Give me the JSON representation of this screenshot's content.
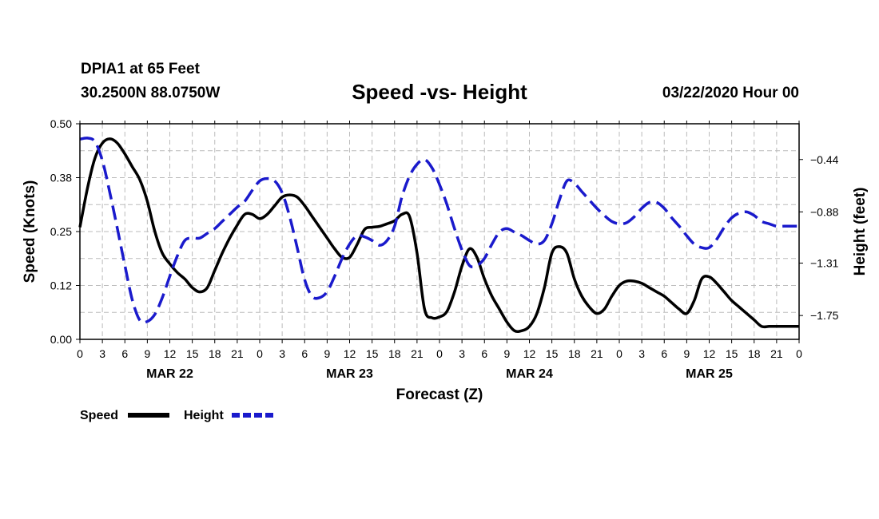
{
  "header": {
    "station": "DPIA1 at 65 Feet",
    "latlon": "30.2500N 88.0750W",
    "title": "Speed -vs- Height",
    "datetime": "03/22/2020 Hour 00"
  },
  "colors": {
    "speed": "#000000",
    "height": "#1a1acc",
    "grid": "#bbbbbb"
  },
  "chart_data": {
    "type": "line",
    "title": "Speed -vs- Height",
    "xlabel": "Forecast (Z)",
    "ylabel": "Speed (Knots)",
    "y2label": "Height (feet)",
    "xlim": [
      0,
      96
    ],
    "ylim": [
      0,
      0.5
    ],
    "y2lim": [
      -1.95,
      -0.14
    ],
    "x_ticks": [
      0,
      3,
      6,
      9,
      12,
      15,
      18,
      21,
      24,
      27,
      30,
      33,
      36,
      39,
      42,
      45,
      48,
      51,
      54,
      57,
      60,
      63,
      66,
      69,
      72,
      75,
      78,
      81,
      84,
      87,
      90,
      93,
      96
    ],
    "x_tick_labels": [
      "0",
      "3",
      "6",
      "9",
      "12",
      "15",
      "18",
      "21",
      "0",
      "3",
      "6",
      "9",
      "12",
      "15",
      "18",
      "21",
      "0",
      "3",
      "6",
      "9",
      "12",
      "15",
      "18",
      "21",
      "0",
      "3",
      "6",
      "9",
      "12",
      "15",
      "18",
      "21",
      "0"
    ],
    "y_tick_values": [
      0,
      0.125,
      0.25,
      0.375,
      0.5
    ],
    "y_tick_labels": [
      "0.00",
      "0.12",
      "0.25",
      "0.38",
      "0.50"
    ],
    "y2_tick_values": [
      -1.75,
      -1.31,
      -0.88,
      -0.44
    ],
    "y2_tick_labels": [
      "−1.75",
      "−1.31",
      "−0.88",
      "−0.44"
    ],
    "day_labels": [
      {
        "x": 12,
        "label": "MAR 22"
      },
      {
        "x": 36,
        "label": "MAR 23"
      },
      {
        "x": 60,
        "label": "MAR 24"
      },
      {
        "x": 84,
        "label": "MAR 25"
      }
    ],
    "grid": true,
    "legend_position": "bottom-left",
    "series": [
      {
        "name": "Speed",
        "axis": "left",
        "style": "solid",
        "x": [
          0,
          1,
          2,
          3,
          4,
          5,
          6,
          7,
          8,
          9,
          10,
          11,
          12,
          13,
          14,
          15,
          16,
          17,
          18,
          19,
          20,
          21,
          22,
          23,
          24,
          25,
          26,
          27,
          28,
          29,
          30,
          31,
          32,
          33,
          34,
          35,
          36,
          37,
          38,
          39,
          40,
          41,
          42,
          43,
          44,
          45,
          46,
          47,
          48,
          49,
          50,
          51,
          52,
          53,
          54,
          55,
          56,
          57,
          58,
          59,
          60,
          61,
          62,
          63,
          64,
          65,
          66,
          67,
          68,
          69,
          70,
          71,
          72,
          73,
          74,
          75,
          76,
          77,
          78,
          79,
          80,
          81,
          82,
          83,
          84,
          85,
          86,
          87,
          88,
          89,
          90,
          91,
          92,
          93,
          94,
          95,
          96
        ],
        "values": [
          0.26,
          0.35,
          0.42,
          0.455,
          0.465,
          0.455,
          0.43,
          0.4,
          0.37,
          0.32,
          0.25,
          0.2,
          0.175,
          0.155,
          0.14,
          0.12,
          0.11,
          0.12,
          0.16,
          0.2,
          0.235,
          0.265,
          0.29,
          0.29,
          0.28,
          0.29,
          0.31,
          0.33,
          0.335,
          0.33,
          0.31,
          0.285,
          0.26,
          0.235,
          0.21,
          0.19,
          0.19,
          0.22,
          0.255,
          0.26,
          0.262,
          0.268,
          0.275,
          0.29,
          0.285,
          0.2,
          0.07,
          0.05,
          0.052,
          0.065,
          0.11,
          0.17,
          0.21,
          0.19,
          0.14,
          0.1,
          0.07,
          0.04,
          0.02,
          0.02,
          0.03,
          0.06,
          0.12,
          0.2,
          0.215,
          0.2,
          0.14,
          0.1,
          0.075,
          0.06,
          0.07,
          0.1,
          0.125,
          0.135,
          0.135,
          0.13,
          0.12,
          0.11,
          0.1,
          0.085,
          0.07,
          0.06,
          0.09,
          0.14,
          0.145,
          0.13,
          0.11,
          0.09,
          0.075,
          0.06,
          0.045,
          0.03,
          0.03,
          0.03,
          0.03,
          0.03,
          0.03
        ]
      },
      {
        "name": "Height",
        "axis": "right",
        "style": "dashed",
        "x": [
          0,
          1,
          2,
          3,
          4,
          5,
          6,
          7,
          8,
          9,
          10,
          11,
          12,
          13,
          14,
          15,
          16,
          17,
          18,
          19,
          20,
          21,
          22,
          23,
          24,
          25,
          26,
          27,
          28,
          29,
          30,
          31,
          32,
          33,
          34,
          35,
          36,
          37,
          38,
          39,
          40,
          41,
          42,
          43,
          44,
          45,
          46,
          47,
          48,
          49,
          50,
          51,
          52,
          53,
          54,
          55,
          56,
          57,
          58,
          59,
          60,
          61,
          62,
          63,
          64,
          65,
          66,
          67,
          68,
          69,
          70,
          71,
          72,
          73,
          74,
          75,
          76,
          77,
          78,
          79,
          80,
          81,
          82,
          83,
          84,
          85,
          86,
          87,
          88,
          89,
          90,
          91,
          92,
          93,
          94,
          95,
          96
        ],
        "values": [
          -0.27,
          -0.26,
          -0.29,
          -0.45,
          -0.72,
          -1.02,
          -1.33,
          -1.62,
          -1.79,
          -1.8,
          -1.74,
          -1.6,
          -1.42,
          -1.25,
          -1.12,
          -1.1,
          -1.1,
          -1.06,
          -1.02,
          -0.96,
          -0.9,
          -0.84,
          -0.79,
          -0.7,
          -0.62,
          -0.6,
          -0.62,
          -0.72,
          -0.92,
          -1.18,
          -1.45,
          -1.59,
          -1.6,
          -1.55,
          -1.42,
          -1.27,
          -1.15,
          -1.08,
          -1.09,
          -1.12,
          -1.16,
          -1.12,
          -1.0,
          -0.75,
          -0.58,
          -0.48,
          -0.44,
          -0.51,
          -0.65,
          -0.82,
          -1.02,
          -1.2,
          -1.33,
          -1.33,
          -1.27,
          -1.15,
          -1.05,
          -1.02,
          -1.05,
          -1.08,
          -1.12,
          -1.15,
          -1.12,
          -0.98,
          -0.78,
          -0.62,
          -0.64,
          -0.71,
          -0.78,
          -0.85,
          -0.91,
          -0.96,
          -0.98,
          -0.97,
          -0.92,
          -0.85,
          -0.8,
          -0.8,
          -0.85,
          -0.93,
          -1.0,
          -1.08,
          -1.15,
          -1.18,
          -1.18,
          -1.11,
          -1.01,
          -0.93,
          -0.89,
          -0.88,
          -0.91,
          -0.96,
          -0.98,
          -1.0,
          -1.0,
          -1.0,
          -1.0
        ]
      }
    ]
  },
  "legend": {
    "speed_label": "Speed",
    "height_label": "Height"
  }
}
